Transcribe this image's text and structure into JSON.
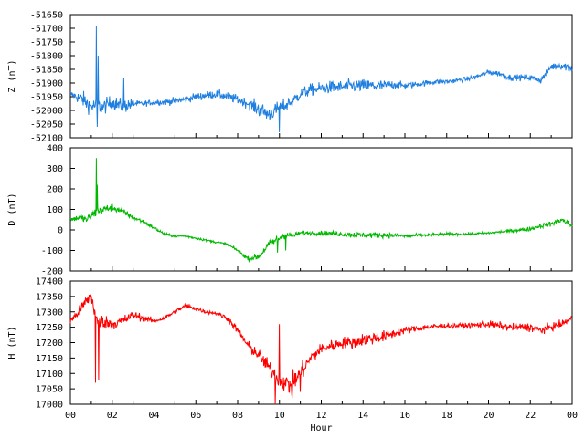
{
  "chart_data": [
    {
      "type": "line",
      "ylabel": "Z (nT)",
      "ylim": [
        -52100,
        -51650
      ],
      "yticks": [
        -51650,
        -51700,
        -51750,
        -51800,
        -51850,
        -51900,
        -51950,
        -52000,
        -52050,
        -52100
      ],
      "xlim": [
        0,
        24
      ],
      "color": "#1e7fe0",
      "base": [
        [
          0,
          -51940
        ],
        [
          0.3,
          -51950
        ],
        [
          0.6,
          -51960
        ],
        [
          0.8,
          -51975
        ],
        [
          1.0,
          -51985
        ],
        [
          1.3,
          -51980
        ],
        [
          1.5,
          -51990
        ],
        [
          2.0,
          -51970
        ],
        [
          2.5,
          -51985
        ],
        [
          3.0,
          -51975
        ],
        [
          3.5,
          -51975
        ],
        [
          4.0,
          -51970
        ],
        [
          4.5,
          -51970
        ],
        [
          5.0,
          -51965
        ],
        [
          5.5,
          -51960
        ],
        [
          6.0,
          -51950
        ],
        [
          6.5,
          -51945
        ],
        [
          7.0,
          -51940
        ],
        [
          7.5,
          -51950
        ],
        [
          8.0,
          -51960
        ],
        [
          8.5,
          -51975
        ],
        [
          9.0,
          -51995
        ],
        [
          9.5,
          -52015
        ],
        [
          10.0,
          -51990
        ],
        [
          10.5,
          -51975
        ],
        [
          11.0,
          -51940
        ],
        [
          11.5,
          -51925
        ],
        [
          12.0,
          -51920
        ],
        [
          12.5,
          -51915
        ],
        [
          13.0,
          -51915
        ],
        [
          13.5,
          -51910
        ],
        [
          14.0,
          -51910
        ],
        [
          15.0,
          -51910
        ],
        [
          15.5,
          -51905
        ],
        [
          16.0,
          -51910
        ],
        [
          16.5,
          -51905
        ],
        [
          17.0,
          -51900
        ],
        [
          17.5,
          -51895
        ],
        [
          18.0,
          -51895
        ],
        [
          18.5,
          -51890
        ],
        [
          19.0,
          -51885
        ],
        [
          19.5,
          -51875
        ],
        [
          20.0,
          -51860
        ],
        [
          20.5,
          -51865
        ],
        [
          21.0,
          -51880
        ],
        [
          21.5,
          -51880
        ],
        [
          22.0,
          -51880
        ],
        [
          22.5,
          -51890
        ],
        [
          23.0,
          -51840
        ],
        [
          23.5,
          -51835
        ],
        [
          24.0,
          -51845
        ]
      ],
      "noise": [
        [
          0,
          10
        ],
        [
          0.6,
          30
        ],
        [
          2.8,
          25
        ],
        [
          3.2,
          10
        ],
        [
          8.5,
          18
        ],
        [
          9.0,
          30
        ],
        [
          11.0,
          22
        ],
        [
          14.5,
          25
        ],
        [
          16.0,
          12
        ],
        [
          18.5,
          8
        ],
        [
          22.3,
          12
        ],
        [
          24,
          18
        ]
      ],
      "spikes": [
        [
          1.25,
          -51690
        ],
        [
          1.28,
          -52060
        ],
        [
          1.33,
          -51800
        ],
        [
          2.55,
          -51880
        ],
        [
          10.0,
          -52080
        ],
        [
          10.45,
          -51960
        ]
      ]
    },
    {
      "type": "line",
      "ylabel": "D (nT)",
      "ylim": [
        -200,
        400
      ],
      "yticks": [
        400,
        300,
        200,
        100,
        0,
        -100,
        -200
      ],
      "xlim": [
        0,
        24
      ],
      "color": "#00b800",
      "base": [
        [
          0,
          50
        ],
        [
          0.4,
          60
        ],
        [
          0.8,
          50
        ],
        [
          1.0,
          70
        ],
        [
          1.3,
          90
        ],
        [
          1.6,
          100
        ],
        [
          2.0,
          110
        ],
        [
          2.5,
          90
        ],
        [
          3.0,
          60
        ],
        [
          3.5,
          40
        ],
        [
          4.0,
          10
        ],
        [
          4.5,
          -20
        ],
        [
          5.0,
          -30
        ],
        [
          5.5,
          -30
        ],
        [
          6.0,
          -40
        ],
        [
          6.5,
          -50
        ],
        [
          7.0,
          -60
        ],
        [
          7.5,
          -70
        ],
        [
          8.0,
          -100
        ],
        [
          8.5,
          -140
        ],
        [
          9.0,
          -130
        ],
        [
          9.5,
          -70
        ],
        [
          10.0,
          -40
        ],
        [
          10.3,
          -20
        ],
        [
          10.6,
          -30
        ],
        [
          11.0,
          -15
        ],
        [
          12.0,
          -15
        ],
        [
          13.0,
          -20
        ],
        [
          14.0,
          -25
        ],
        [
          15.0,
          -25
        ],
        [
          16.0,
          -30
        ],
        [
          17.0,
          -25
        ],
        [
          18.0,
          -20
        ],
        [
          19.0,
          -20
        ],
        [
          20.0,
          -15
        ],
        [
          21.0,
          -5
        ],
        [
          22.0,
          5
        ],
        [
          22.5,
          20
        ],
        [
          23.0,
          30
        ],
        [
          23.5,
          50
        ],
        [
          24.0,
          20
        ]
      ],
      "noise": [
        [
          0,
          10
        ],
        [
          1,
          25
        ],
        [
          3,
          12
        ],
        [
          5,
          6
        ],
        [
          8,
          6
        ],
        [
          9.8,
          25
        ],
        [
          11,
          10
        ],
        [
          14.5,
          15
        ],
        [
          17,
          8
        ],
        [
          20,
          6
        ],
        [
          24,
          15
        ]
      ],
      "spikes": [
        [
          1.25,
          350
        ],
        [
          1.28,
          220
        ],
        [
          9.9,
          -110
        ],
        [
          10.3,
          -100
        ]
      ]
    },
    {
      "type": "line",
      "ylabel": "H (nT)",
      "ylim": [
        17000,
        17400
      ],
      "yticks": [
        17400,
        17350,
        17300,
        17250,
        17200,
        17150,
        17100,
        17050,
        17000
      ],
      "xlim": [
        0,
        24
      ],
      "xticks": [
        "00",
        "02",
        "04",
        "06",
        "08",
        "10",
        "12",
        "14",
        "16",
        "18",
        "20",
        "22",
        "00"
      ],
      "xlabel": "Hour",
      "color": "#ff0000",
      "base": [
        [
          0,
          17270
        ],
        [
          0.4,
          17300
        ],
        [
          0.8,
          17340
        ],
        [
          1.0,
          17350
        ],
        [
          1.1,
          17320
        ],
        [
          1.3,
          17260
        ],
        [
          1.5,
          17270
        ],
        [
          2.0,
          17260
        ],
        [
          2.5,
          17270
        ],
        [
          3.0,
          17290
        ],
        [
          3.5,
          17280
        ],
        [
          4.0,
          17270
        ],
        [
          4.5,
          17280
        ],
        [
          5.0,
          17300
        ],
        [
          5.5,
          17320
        ],
        [
          6.0,
          17310
        ],
        [
          6.5,
          17300
        ],
        [
          7.0,
          17295
        ],
        [
          7.5,
          17280
        ],
        [
          8.0,
          17240
        ],
        [
          8.5,
          17190
        ],
        [
          9.0,
          17160
        ],
        [
          9.5,
          17120
        ],
        [
          10.0,
          17080
        ],
        [
          10.5,
          17060
        ],
        [
          11.0,
          17100
        ],
        [
          11.5,
          17150
        ],
        [
          12.0,
          17180
        ],
        [
          12.5,
          17190
        ],
        [
          13.0,
          17200
        ],
        [
          13.5,
          17200
        ],
        [
          14.0,
          17210
        ],
        [
          15.0,
          17220
        ],
        [
          16.0,
          17240
        ],
        [
          16.5,
          17245
        ],
        [
          17.0,
          17250
        ],
        [
          18.0,
          17255
        ],
        [
          19.0,
          17255
        ],
        [
          20.0,
          17260
        ],
        [
          21.0,
          17250
        ],
        [
          22.0,
          17250
        ],
        [
          22.5,
          17240
        ],
        [
          23.0,
          17250
        ],
        [
          23.5,
          17260
        ],
        [
          24.0,
          17280
        ]
      ],
      "noise": [
        [
          0,
          10
        ],
        [
          1,
          25
        ],
        [
          2.5,
          18
        ],
        [
          4,
          8
        ],
        [
          7,
          6
        ],
        [
          9,
          20
        ],
        [
          10.5,
          35
        ],
        [
          12,
          18
        ],
        [
          14.5,
          22
        ],
        [
          16,
          12
        ],
        [
          18,
          8
        ],
        [
          22.3,
          15
        ],
        [
          24,
          10
        ]
      ],
      "spikes": [
        [
          1.2,
          17070
        ],
        [
          1.35,
          17080
        ],
        [
          9.8,
          17000
        ],
        [
          10.0,
          17260
        ],
        [
          10.6,
          17020
        ],
        [
          11.0,
          17040
        ]
      ]
    }
  ]
}
